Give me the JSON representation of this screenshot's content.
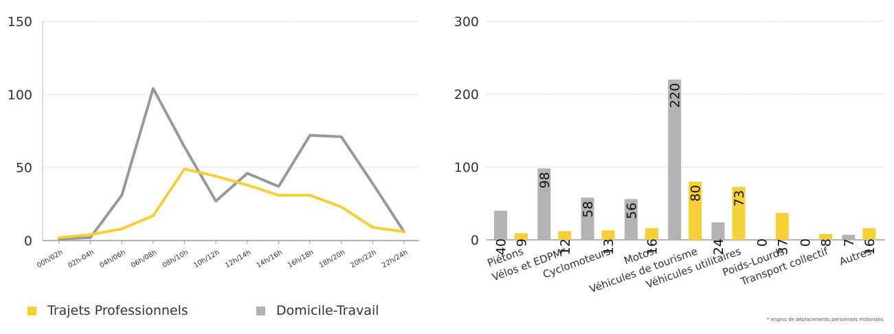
{
  "chart_data": [
    {
      "type": "line",
      "categories": [
        "00h/02h",
        "02h-04h",
        "04h/06h",
        "06h/08h",
        "08h/10h",
        "10h/12h",
        "12h/14h",
        "14h/16h",
        "16h/18h",
        "18h/20h",
        "20h/22h",
        "22h/24h"
      ],
      "series": [
        {
          "name": "Trajets Professionnels",
          "color": "#F7D038",
          "values": [
            2,
            4,
            8,
            17,
            49,
            44,
            38,
            31,
            31,
            23,
            9,
            6
          ]
        },
        {
          "name": "Domicile-Travail",
          "color": "#999999",
          "values": [
            1,
            2,
            31,
            104,
            64,
            27,
            46,
            37,
            72,
            71,
            39,
            6
          ]
        }
      ],
      "ylim": [
        0,
        150
      ],
      "yticks": [
        0,
        50,
        100,
        150
      ],
      "grid": true,
      "legend": "bottom"
    },
    {
      "type": "bar",
      "categories": [
        "Piétons",
        "Vélos et EDPM*",
        "Cyclomoteurs",
        "Motos",
        "Véhicules de tourisme",
        "Véhicules utilitaires",
        "Poids-Lourds",
        "Transport collectif",
        "Autres"
      ],
      "series": [
        {
          "name": "Domicile-Travail",
          "color": "#B3B3B3",
          "values": [
            40,
            98,
            58,
            56,
            220,
            24,
            0,
            0,
            7
          ]
        },
        {
          "name": "Trajets Professionnels",
          "color": "#F7D038",
          "values": [
            9,
            12,
            13,
            16,
            80,
            73,
            37,
            8,
            16
          ]
        }
      ],
      "ylim": [
        0,
        300
      ],
      "yticks": [
        0,
        100,
        200,
        300
      ],
      "grid": true,
      "data_labels": true,
      "footnote": "* engins de déplacements personnels motorisés"
    }
  ],
  "legend": {
    "items": [
      {
        "label": "Trajets Professionnels",
        "color": "#F7D038"
      },
      {
        "label": "Domicile-Travail",
        "color": "#B3B3B3"
      }
    ]
  }
}
